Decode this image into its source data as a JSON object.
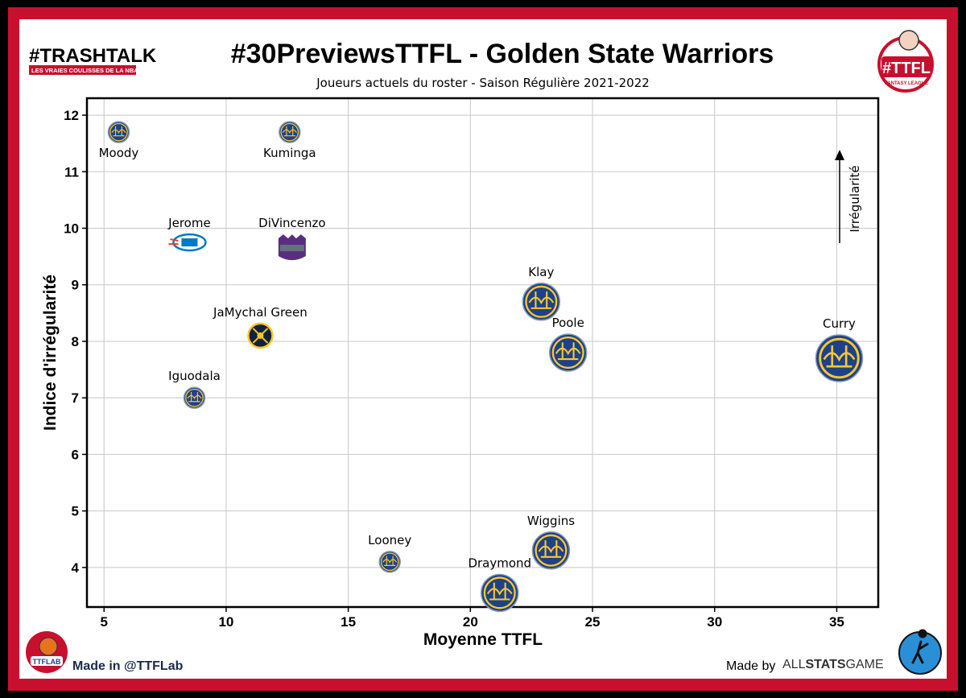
{
  "branding": {
    "trashtalk_logo": "#TRASHTALK",
    "trashtalk_tagline": "LES VRAIES COULISSES DE LA NBA",
    "ttfl_logo": "#TTFL",
    "ttfl_logo_tagline": "FANTASY LEAGUE",
    "ttflab_logo": "TTFLAB",
    "made_in": "Made in @TTFLab",
    "made_by_prefix": "Made by",
    "made_by_all": "ALL",
    "made_by_stats": "STATS",
    "made_by_game": "GAME"
  },
  "colors": {
    "border_red": "#c8102e",
    "gsw_blue": "#1d428a",
    "gsw_gold": "#ffc72c",
    "okc_blue": "#007ac1",
    "okc_orange": "#ef3b24",
    "sac_purple": "#5a2d81",
    "sac_gray": "#63727a",
    "den_navy": "#0e2240",
    "den_gold": "#fec524"
  },
  "chart_data": {
    "type": "scatter",
    "title": "#30PreviewsTTFL - Golden State Warriors",
    "subtitle": "Joueurs actuels du roster - Saison Régulière 2021-2022",
    "xlabel": "Moyenne TTFL",
    "ylabel": "Indice d'irrégularité",
    "xlim": [
      4.3,
      36.7
    ],
    "ylim": [
      3.3,
      12.3
    ],
    "xticks": [
      5,
      10,
      15,
      20,
      25,
      30,
      35
    ],
    "yticks": [
      4,
      5,
      6,
      7,
      8,
      9,
      10,
      11,
      12
    ],
    "grid": true,
    "annotation": "Irrégularité",
    "points": [
      {
        "name": "Moody",
        "x": 5.6,
        "y": 11.7,
        "team": "gsw-logo",
        "size": "small"
      },
      {
        "name": "Kuminga",
        "x": 12.6,
        "y": 11.7,
        "team": "gsw-logo",
        "size": "small"
      },
      {
        "name": "Jerome",
        "x": 8.5,
        "y": 9.75,
        "team": "okc-logo",
        "size": "small"
      },
      {
        "name": "DiVincenzo",
        "x": 12.7,
        "y": 9.65,
        "team": "sac-logo",
        "size": "small"
      },
      {
        "name": "JaMychal Green",
        "x": 11.4,
        "y": 8.1,
        "team": "den-logo",
        "size": "small"
      },
      {
        "name": "Iguodala",
        "x": 8.7,
        "y": 7.0,
        "team": "gsw-logo",
        "size": "small"
      },
      {
        "name": "Klay",
        "x": 22.9,
        "y": 8.7,
        "team": "gsw-logo",
        "size": "medium"
      },
      {
        "name": "Poole",
        "x": 24.0,
        "y": 7.8,
        "team": "gsw-logo",
        "size": "medium"
      },
      {
        "name": "Curry",
        "x": 35.1,
        "y": 7.7,
        "team": "gsw-logo",
        "size": "large"
      },
      {
        "name": "Looney",
        "x": 16.7,
        "y": 4.1,
        "team": "gsw-logo",
        "size": "small"
      },
      {
        "name": "Wiggins",
        "x": 23.3,
        "y": 4.3,
        "team": "gsw-logo",
        "size": "medium"
      },
      {
        "name": "Draymond",
        "x": 21.2,
        "y": 3.55,
        "team": "gsw-logo",
        "size": "medium"
      }
    ]
  }
}
